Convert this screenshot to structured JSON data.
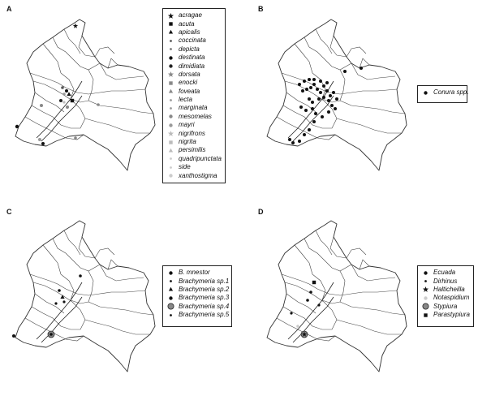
{
  "panels": [
    {
      "letter": "A",
      "legend": [
        {
          "label": "acragae",
          "symbol": "star",
          "color": "#111111"
        },
        {
          "label": "acuta",
          "symbol": "square",
          "color": "#111111"
        },
        {
          "label": "apicalis",
          "symbol": "triangle",
          "color": "#111111"
        },
        {
          "label": "coccinata",
          "symbol": "small-dot",
          "color": "#555555"
        },
        {
          "label": "depicta",
          "symbol": "small-dot",
          "color": "#777777"
        },
        {
          "label": "destinata",
          "symbol": "dot",
          "color": "#111111"
        },
        {
          "label": "dimidiata",
          "symbol": "dot",
          "color": "#222222"
        },
        {
          "label": "dorsata",
          "symbol": "star",
          "color": "#888888"
        },
        {
          "label": "enocki",
          "symbol": "square",
          "color": "#888888"
        },
        {
          "label": "foveata",
          "symbol": "triangle",
          "color": "#888888"
        },
        {
          "label": "lecta",
          "symbol": "small-dot",
          "color": "#999999"
        },
        {
          "label": "marginata",
          "symbol": "small-dot",
          "color": "#999999"
        },
        {
          "label": "mesomelas",
          "symbol": "dot",
          "color": "#888888"
        },
        {
          "label": "mayri",
          "symbol": "dot",
          "color": "#9a9a9a"
        },
        {
          "label": "nigrifrons",
          "symbol": "star",
          "color": "#bbbbbb"
        },
        {
          "label": "nigrita",
          "symbol": "square",
          "color": "#bbbbbb"
        },
        {
          "label": "persimilis",
          "symbol": "triangle",
          "color": "#bbbbbb"
        },
        {
          "label": "quadripunctata",
          "symbol": "small-dot",
          "color": "#cccccc"
        },
        {
          "label": "side",
          "symbol": "small-dot",
          "color": "#cccccc"
        },
        {
          "label": "xanthostigma",
          "symbol": "dot",
          "color": "#cccccc"
        }
      ]
    },
    {
      "letter": "B",
      "legend": [
        {
          "label": "Conura spp.",
          "symbol": "dot",
          "color": "#111111"
        }
      ]
    },
    {
      "letter": "C",
      "legend": [
        {
          "label": "B. mnestor",
          "symbol": "dot",
          "color": "#111111"
        },
        {
          "label": "Brachymeria sp.1",
          "symbol": "small-dot",
          "color": "#111111"
        },
        {
          "label": "Brachymeria sp.2",
          "symbol": "triangle",
          "color": "#111111"
        },
        {
          "label": "Brachymeria sp.3",
          "symbol": "dot",
          "color": "#111111"
        },
        {
          "label": "Brachymeria sp.4",
          "symbol": "big-dot",
          "color": "#888888"
        },
        {
          "label": "Brachymeria sp.5",
          "symbol": "small-dot",
          "color": "#111111"
        }
      ]
    },
    {
      "letter": "D",
      "legend": [
        {
          "label": "Ecuada",
          "symbol": "dot",
          "color": "#111111"
        },
        {
          "label": "Dirhinus",
          "symbol": "small-dot",
          "color": "#111111"
        },
        {
          "label": "Halticheilla",
          "symbol": "star",
          "color": "#111111"
        },
        {
          "label": "Notaspidium",
          "symbol": "dot",
          "color": "#cccccc"
        },
        {
          "label": "Stypiura",
          "symbol": "big-dot",
          "color": "#888888"
        },
        {
          "label": "Parastypiura",
          "symbol": "square",
          "color": "#111111"
        }
      ]
    }
  ]
}
